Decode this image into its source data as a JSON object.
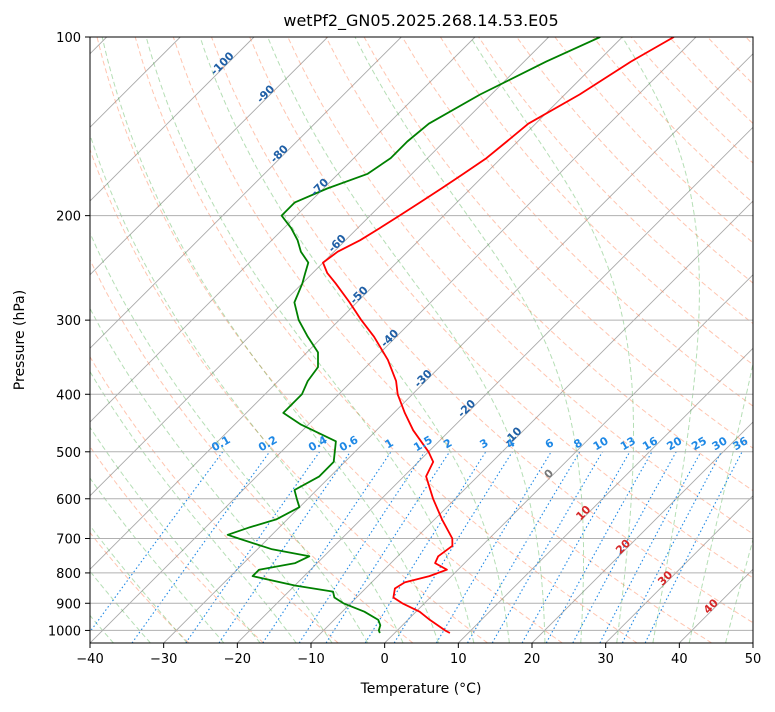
{
  "chart_data": {
    "type": "line",
    "title": "wetPf2_GN05.2025.268.14.53.E05",
    "xlabel": "Temperature (°C)",
    "ylabel": "Pressure (hPa)",
    "xlim": [
      -40,
      50
    ],
    "ylim": [
      1050,
      100
    ],
    "yscale": "log",
    "skew": true,
    "grid": true,
    "x_ticks": [
      -40,
      -30,
      -20,
      -10,
      0,
      10,
      20,
      30,
      40,
      50
    ],
    "y_ticks": [
      100,
      200,
      300,
      400,
      500,
      600,
      700,
      800,
      900,
      1000
    ],
    "colors": {
      "temperature": "#ff0000",
      "dewpoint": "#008000",
      "dry_adiabat": "#ff7f50",
      "moist_adiabat": "#2ca02c",
      "mixing_ratio": "#1f77b4",
      "isotherm": "#808080"
    },
    "isotherm_labels": [
      {
        "text": "-100",
        "value": -100,
        "p": 112
      },
      {
        "text": "-90",
        "value": -90,
        "p": 126
      },
      {
        "text": "-80",
        "value": -80,
        "p": 159
      },
      {
        "text": "-70",
        "value": -70,
        "p": 181
      },
      {
        "text": "-60",
        "value": -60,
        "p": 225
      },
      {
        "text": "-50",
        "value": -50,
        "p": 275
      },
      {
        "text": "-40",
        "value": -40,
        "p": 325
      },
      {
        "text": "-30",
        "value": -30,
        "p": 380
      },
      {
        "text": "-20",
        "value": -20,
        "p": 427
      },
      {
        "text": "-10",
        "value": -10,
        "p": 475
      },
      {
        "text": "0",
        "value": 0,
        "p": 550
      },
      {
        "text": "10",
        "value": 10,
        "p": 640
      },
      {
        "text": "20",
        "value": 20,
        "p": 730
      },
      {
        "text": "30",
        "value": 30,
        "p": 825
      },
      {
        "text": "40",
        "value": 40,
        "p": 920
      }
    ],
    "mixing_ratio_labels": [
      "0.1",
      "0.2",
      "0.4",
      "0.6",
      "1",
      "1.5",
      "2",
      "3",
      "4",
      "6",
      "8",
      "10",
      "13",
      "16",
      "20",
      "25",
      "30",
      "36"
    ],
    "mixing_ratio_values": [
      0.1,
      0.2,
      0.4,
      0.6,
      1,
      1.5,
      2,
      3,
      4,
      6,
      8,
      10,
      13,
      16,
      20,
      25,
      30,
      36
    ],
    "series": [
      {
        "name": "temperature",
        "points": [
          [
            100,
            -43
          ],
          [
            110,
            -45.5
          ],
          [
            125,
            -48
          ],
          [
            140,
            -51
          ],
          [
            150,
            -51.5
          ],
          [
            160,
            -52
          ],
          [
            170,
            -53
          ],
          [
            180,
            -54
          ],
          [
            190,
            -55
          ],
          [
            200,
            -56
          ],
          [
            210,
            -57
          ],
          [
            220,
            -58
          ],
          [
            230,
            -59.5
          ],
          [
            240,
            -60
          ],
          [
            250,
            -58
          ],
          [
            260,
            -55.5
          ],
          [
            280,
            -51
          ],
          [
            300,
            -47
          ],
          [
            320,
            -43
          ],
          [
            350,
            -38
          ],
          [
            380,
            -34
          ],
          [
            400,
            -32
          ],
          [
            430,
            -28.5
          ],
          [
            460,
            -25
          ],
          [
            500,
            -20
          ],
          [
            520,
            -18
          ],
          [
            550,
            -17
          ],
          [
            600,
            -13
          ],
          [
            650,
            -9
          ],
          [
            700,
            -5
          ],
          [
            720,
            -4
          ],
          [
            750,
            -4.5
          ],
          [
            770,
            -4
          ],
          [
            790,
            -1.5
          ],
          [
            810,
            -3
          ],
          [
            830,
            -5.5
          ],
          [
            850,
            -6
          ],
          [
            880,
            -5
          ],
          [
            900,
            -3
          ],
          [
            930,
            0.5
          ],
          [
            960,
            3
          ],
          [
            1000,
            6.5
          ],
          [
            1010,
            7.5
          ]
        ]
      },
      {
        "name": "dewpoint",
        "points": [
          [
            100,
            -53
          ],
          [
            110,
            -57
          ],
          [
            125,
            -61.5
          ],
          [
            140,
            -64.5
          ],
          [
            150,
            -65
          ],
          [
            160,
            -65
          ],
          [
            170,
            -66
          ],
          [
            180,
            -69.5
          ],
          [
            190,
            -72
          ],
          [
            200,
            -72
          ],
          [
            210,
            -69
          ],
          [
            220,
            -66.5
          ],
          [
            230,
            -64.5
          ],
          [
            240,
            -62
          ],
          [
            250,
            -61
          ],
          [
            260,
            -60
          ],
          [
            280,
            -58.5
          ],
          [
            300,
            -55.5
          ],
          [
            320,
            -52
          ],
          [
            340,
            -48.5
          ],
          [
            360,
            -46.5
          ],
          [
            380,
            -46
          ],
          [
            400,
            -45
          ],
          [
            420,
            -45
          ],
          [
            430,
            -45
          ],
          [
            450,
            -41
          ],
          [
            480,
            -34
          ],
          [
            520,
            -31.5
          ],
          [
            550,
            -31.5
          ],
          [
            580,
            -33
          ],
          [
            600,
            -31.5
          ],
          [
            620,
            -30
          ],
          [
            650,
            -31.5
          ],
          [
            670,
            -34
          ],
          [
            690,
            -36
          ],
          [
            700,
            -34
          ],
          [
            730,
            -28
          ],
          [
            750,
            -22
          ],
          [
            770,
            -23
          ],
          [
            790,
            -27
          ],
          [
            810,
            -27
          ],
          [
            840,
            -20
          ],
          [
            860,
            -14
          ],
          [
            880,
            -13
          ],
          [
            900,
            -11
          ],
          [
            930,
            -7
          ],
          [
            960,
            -4
          ],
          [
            980,
            -3
          ],
          [
            1000,
            -2.5
          ],
          [
            1010,
            -2
          ]
        ]
      }
    ]
  }
}
